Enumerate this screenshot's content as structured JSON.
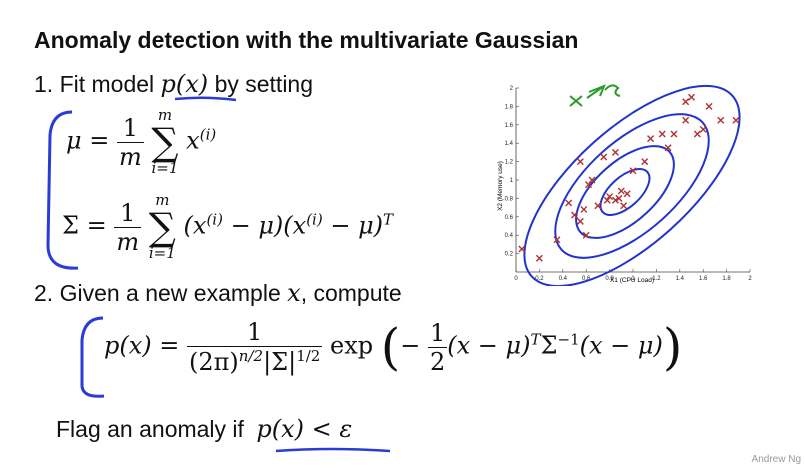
{
  "title": "Anomaly detection with the multivariate Gaussian",
  "step1": {
    "prefix": "1. Fit model",
    "model": "p(x)",
    "suffix": "by setting",
    "mu_lhs": "μ =",
    "frac_num": "1",
    "frac_den": "m",
    "sum_upper": "m",
    "sum_lower": "i=1",
    "sum_symbol": "∑",
    "mu_term": "x",
    "mu_sup": "(i)",
    "sigma_lhs": "Σ =",
    "sigma_term_a": "(x",
    "sigma_term_b": " − μ)(x",
    "sigma_term_c": " − μ)",
    "sigma_sup_T": "T"
  },
  "step2": {
    "prefix": "2. Given a new example",
    "var": "x",
    "suffix": ", compute",
    "px_lhs": "p(x) =",
    "frac_num": "1",
    "den_a": "(2π)",
    "den_exp": "n/2",
    "den_b": "|Σ|",
    "den_exp2": "1/2",
    "exp_word": "exp",
    "inner_minus": "−",
    "half_num": "1",
    "half_den": "2",
    "inner_a": "(x − μ)",
    "inner_T": "T",
    "inner_b": "Σ",
    "inner_inv": "−1",
    "inner_c": "(x − μ)"
  },
  "flag": {
    "text": "Flag an anomaly if",
    "cond": "p(x) < ε"
  },
  "chart_data": {
    "type": "scatter",
    "xlabel": "X1 (CPU Load)",
    "ylabel": "X2 (Memory use)",
    "xlim": [
      0,
      2
    ],
    "ylim": [
      0,
      2
    ],
    "xticks": [
      "0",
      "0.2",
      "0.4",
      "0.6",
      "0.8",
      "1",
      "1.2",
      "1.4",
      "1.6",
      "1.8",
      "2"
    ],
    "yticks": [
      "0.2",
      "0.4",
      "0.6",
      "0.8",
      "1",
      "1.2",
      "1.4",
      "1.6",
      "1.8",
      "2"
    ],
    "marker_color": "#b03030",
    "contour_color": "#2233cc",
    "points": [
      [
        0.05,
        0.25
      ],
      [
        0.2,
        0.15
      ],
      [
        0.35,
        0.35
      ],
      [
        0.45,
        0.75
      ],
      [
        0.5,
        0.62
      ],
      [
        0.55,
        0.55
      ],
      [
        0.58,
        0.68
      ],
      [
        0.6,
        0.4
      ],
      [
        0.62,
        0.95
      ],
      [
        0.65,
        1.0
      ],
      [
        0.7,
        0.72
      ],
      [
        0.78,
        0.78
      ],
      [
        0.8,
        0.82
      ],
      [
        0.85,
        0.78
      ],
      [
        0.88,
        0.8
      ],
      [
        0.9,
        0.88
      ],
      [
        0.92,
        0.72
      ],
      [
        0.95,
        0.85
      ],
      [
        0.75,
        1.25
      ],
      [
        0.85,
        1.3
      ],
      [
        1.0,
        1.1
      ],
      [
        1.1,
        1.2
      ],
      [
        1.15,
        1.45
      ],
      [
        1.25,
        1.5
      ],
      [
        1.3,
        1.35
      ],
      [
        1.35,
        1.5
      ],
      [
        1.45,
        1.65
      ],
      [
        1.55,
        1.5
      ],
      [
        1.6,
        1.55
      ],
      [
        1.65,
        1.8
      ],
      [
        1.75,
        1.65
      ],
      [
        1.88,
        1.65
      ],
      [
        1.5,
        1.9
      ],
      [
        1.45,
        1.85
      ],
      [
        0.55,
        1.2
      ]
    ]
  },
  "brand": "Andrew Ng"
}
